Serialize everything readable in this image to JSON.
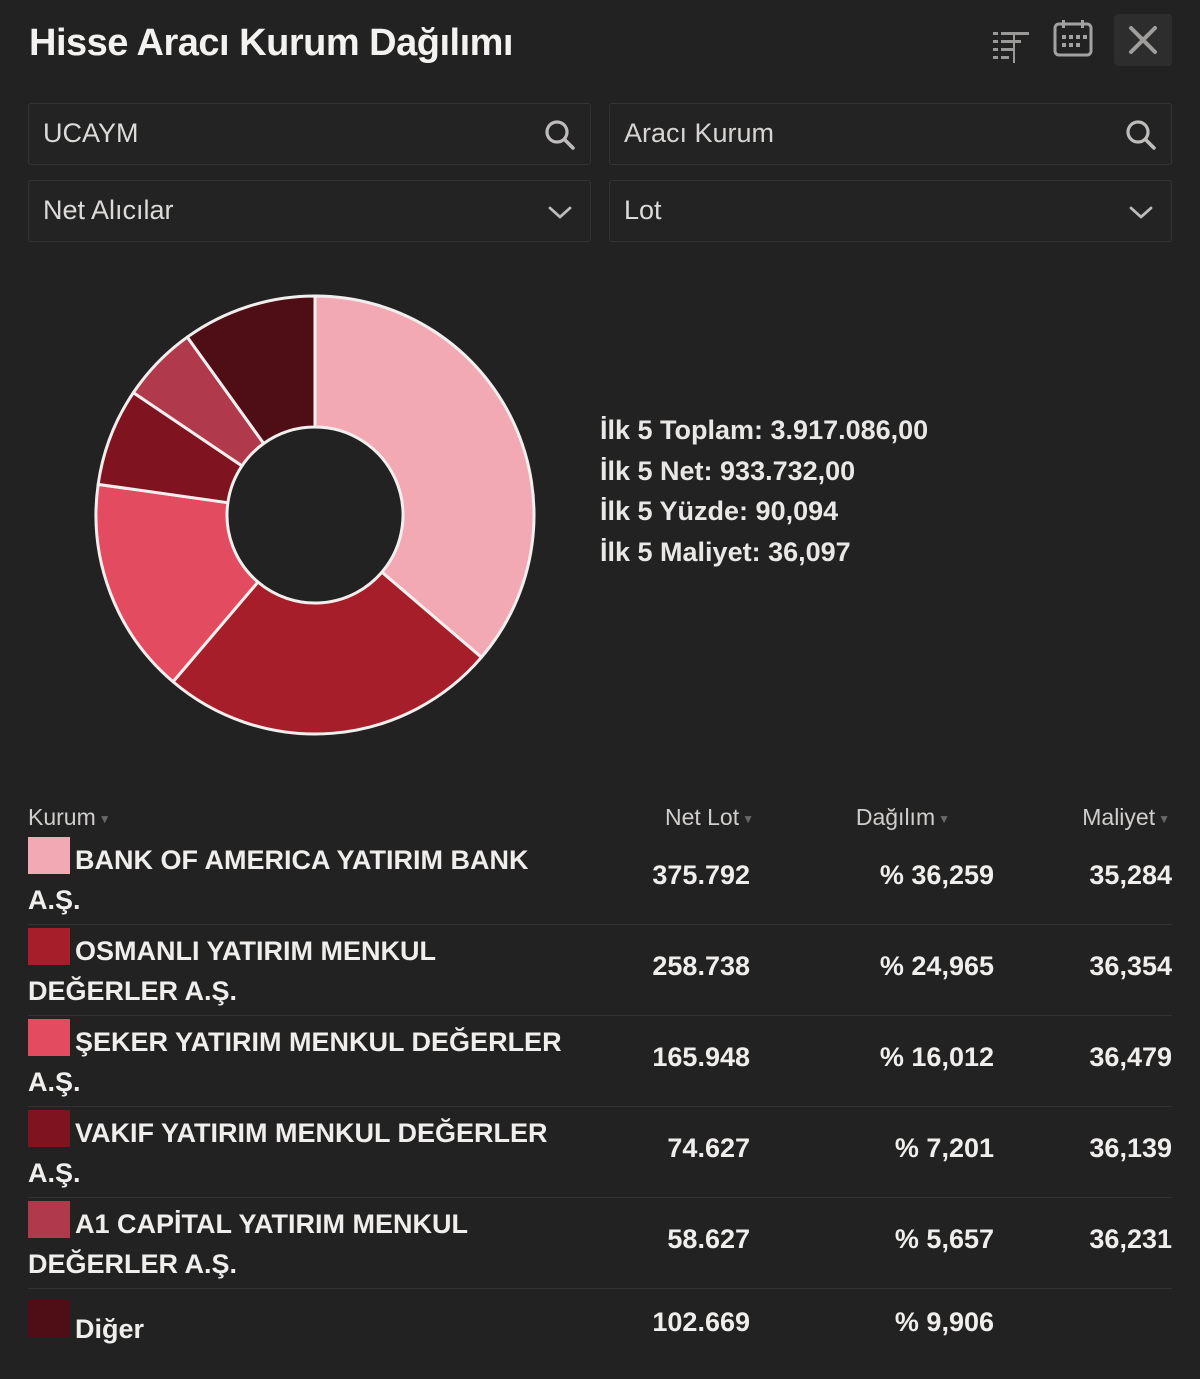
{
  "header": {
    "title": "Hisse Aracı Kurum Dağılımı",
    "icons": [
      "filter-list-icon",
      "calendar-icon",
      "close-icon"
    ]
  },
  "filters": {
    "symbol": {
      "value": "UCAYM"
    },
    "broker": {
      "placeholder": "Aracı Kurum"
    },
    "side": {
      "selected": "Net Alıcılar"
    },
    "unit": {
      "selected": "Lot"
    }
  },
  "summary": {
    "total": "İlk 5 Toplam: 3.917.086,00",
    "net": "İlk 5 Net: 933.732,00",
    "percent": "İlk 5 Yüzde: 90,094",
    "cost": "İlk 5 Maliyet: 36,097"
  },
  "chart_data": {
    "type": "pie",
    "categories": [
      "BANK OF AMERICA YATIRIM BANK A.Ş.",
      "OSMANLI YATIRIM MENKUL DEĞERLER A.Ş.",
      "ŞEKER YATIRIM MENKUL DEĞERLER A.Ş.",
      "VAKIF YATIRIM MENKUL DEĞERLER A.Ş.",
      "A1 CAPİTAL YATIRIM MENKUL DEĞERLER A.Ş.",
      "Diğer"
    ],
    "values": [
      36.259,
      24.965,
      16.012,
      7.201,
      5.657,
      9.906
    ],
    "colors": [
      "#f2a9b3",
      "#a61e29",
      "#e24b60",
      "#7f1420",
      "#b03a4c",
      "#4f0e15"
    ],
    "donut": true
  },
  "table": {
    "headers": {
      "kurum": "Kurum",
      "net_lot": "Net Lot",
      "dagilim": "Dağılım",
      "maliyet": "Maliyet"
    },
    "rows": [
      {
        "name": "BANK OF AMERICA YATIRIM BANK A.Ş.",
        "net_lot": "375.792",
        "dagilim": "% 36,259",
        "maliyet": "35,284",
        "color": "#f2a9b3"
      },
      {
        "name": "OSMANLI YATIRIM MENKUL DEĞERLER A.Ş.",
        "net_lot": "258.738",
        "dagilim": "% 24,965",
        "maliyet": "36,354",
        "color": "#a61e29"
      },
      {
        "name": "ŞEKER YATIRIM MENKUL DEĞERLER A.Ş.",
        "net_lot": "165.948",
        "dagilim": "% 16,012",
        "maliyet": "36,479",
        "color": "#e24b60"
      },
      {
        "name": "VAKIF YATIRIM MENKUL DEĞERLER A.Ş.",
        "net_lot": "74.627",
        "dagilim": "% 7,201",
        "maliyet": "36,139",
        "color": "#7f1420"
      },
      {
        "name": "A1 CAPİTAL YATIRIM MENKUL DEĞERLER A.Ş.",
        "net_lot": "58.627",
        "dagilim": "% 5,657",
        "maliyet": "36,231",
        "color": "#b03a4c"
      },
      {
        "name": "Diğer",
        "net_lot": "102.669",
        "dagilim": "% 9,906",
        "maliyet": "",
        "color": "#4f0e15"
      }
    ]
  }
}
